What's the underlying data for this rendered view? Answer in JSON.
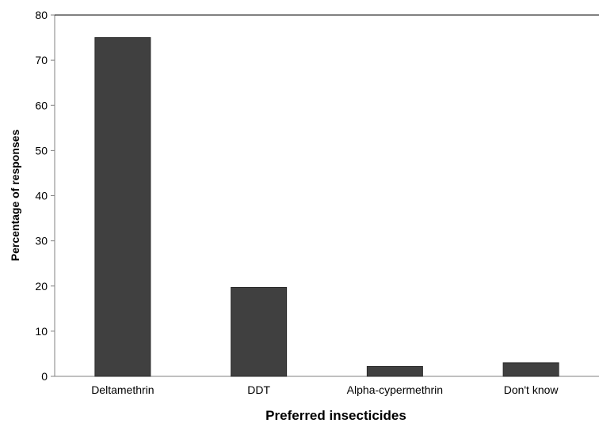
{
  "chart_data": {
    "type": "bar",
    "categories": [
      "Deltamethrin",
      "DDT",
      "Alpha-cypermethrin",
      "Don't know"
    ],
    "values": [
      75,
      19.7,
      2.2,
      3.0
    ],
    "xlabel": "Preferred insecticides",
    "ylabel": "Percentage of responses",
    "ylim": [
      0,
      80
    ],
    "yticks": [
      0,
      10,
      20,
      30,
      40,
      50,
      60,
      70,
      80
    ],
    "grid": false,
    "legend": "none",
    "bar_color": "#404040",
    "axis_color": "#808080"
  }
}
